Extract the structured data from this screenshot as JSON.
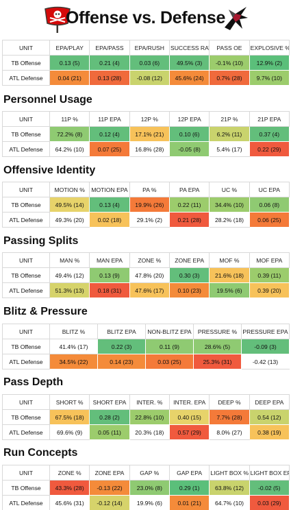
{
  "title": "Offense vs. Defense",
  "logos": {
    "left": "buccaneers-flag-logo",
    "right": "falcons-logo"
  },
  "sections": [
    {
      "name": "",
      "columns": [
        "UNIT",
        "EPA/PLAY",
        "EPA/PASS",
        "EPA/RUSH",
        "SUCCESS RATE",
        "PASS OE",
        "EXPLOSIVE %"
      ],
      "rows": [
        {
          "unit": "TB Offense",
          "cells": [
            {
              "v": "0.13 (5)",
              "c": "#63be7b"
            },
            {
              "v": "0.21 (4)",
              "c": "#63be7b"
            },
            {
              "v": "0.03 (6)",
              "c": "#63be7b"
            },
            {
              "v": "49.5% (3)",
              "c": "#63be7b"
            },
            {
              "v": "-0.1% (10)",
              "c": "#9ccc6c"
            },
            {
              "v": "12.9% (2)",
              "c": "#5bbf7a"
            }
          ]
        },
        {
          "unit": "ATL Defense",
          "cells": [
            {
              "v": "0.04 (21)",
              "c": "#f48b3a"
            },
            {
              "v": "0.13 (28)",
              "c": "#f06a3c"
            },
            {
              "v": "-0.08 (12)",
              "c": "#c9d36d"
            },
            {
              "v": "45.6% (24)",
              "c": "#f48b3a"
            },
            {
              "v": "0.7% (28)",
              "c": "#f06a3c"
            },
            {
              "v": "9.7% (10)",
              "c": "#9ccc6c"
            }
          ]
        }
      ]
    },
    {
      "name": "Personnel Usage",
      "columns": [
        "UNIT",
        "11P %",
        "11P EPA",
        "12P %",
        "12P EPA",
        "21P %",
        "21P EPA"
      ],
      "rows": [
        {
          "unit": "TB Offense",
          "cells": [
            {
              "v": "72.2% (8)",
              "c": "#8fca72"
            },
            {
              "v": "0.12 (4)",
              "c": "#63be7b"
            },
            {
              "v": "17.1% (21)",
              "c": "#f7c25a"
            },
            {
              "v": "0.10 (6)",
              "c": "#63be7b"
            },
            {
              "v": "6.2% (11)",
              "c": "#c9d36d"
            },
            {
              "v": "0.37 (4)",
              "c": "#63be7b"
            }
          ]
        },
        {
          "unit": "ATL Defense",
          "cells": [
            {
              "v": "64.2% (10)",
              "c": "#ffffff"
            },
            {
              "v": "0.07 (25)",
              "c": "#f47a39"
            },
            {
              "v": "16.8% (28)",
              "c": "#ffffff"
            },
            {
              "v": "-0.05 (8)",
              "c": "#8fca72"
            },
            {
              "v": "5.4% (17)",
              "c": "#ffffff"
            },
            {
              "v": "0.22 (29)",
              "c": "#f05a3e"
            }
          ]
        }
      ]
    },
    {
      "name": "Offensive Identity",
      "columns": [
        "UNIT",
        "MOTION %",
        "MOTION EPA",
        "PA %",
        "PA EPA",
        "UC %",
        "UC EPA"
      ],
      "rows": [
        {
          "unit": "TB Offense",
          "cells": [
            {
              "v": "49.5% (14)",
              "c": "#e7d36a"
            },
            {
              "v": "0.13 (4)",
              "c": "#63be7b"
            },
            {
              "v": "19.9% (26)",
              "c": "#f47a39"
            },
            {
              "v": "0.22 (11)",
              "c": "#9ccc6c"
            },
            {
              "v": "34.4% (10)",
              "c": "#9ccc6c"
            },
            {
              "v": "0.06 (8)",
              "c": "#8fca72"
            }
          ]
        },
        {
          "unit": "ATL Defense",
          "cells": [
            {
              "v": "49.3% (20)",
              "c": "#ffffff"
            },
            {
              "v": "0.02 (18)",
              "c": "#f7c25a"
            },
            {
              "v": "29.1% (2)",
              "c": "#ffffff"
            },
            {
              "v": "0.21 (28)",
              "c": "#f05a3e"
            },
            {
              "v": "28.2% (18)",
              "c": "#ffffff"
            },
            {
              "v": "0.06 (25)",
              "c": "#f47a39"
            }
          ]
        }
      ]
    },
    {
      "name": "Passing Splits",
      "columns": [
        "UNIT",
        "MAN %",
        "MAN EPA",
        "ZONE %",
        "ZONE EPA",
        "MOF %",
        "MOF EPA"
      ],
      "rows": [
        {
          "unit": "TB Offense",
          "cells": [
            {
              "v": "49.4% (12)",
              "c": "#ffffff"
            },
            {
              "v": "0.13 (9)",
              "c": "#8fca72"
            },
            {
              "v": "47.8% (20)",
              "c": "#ffffff"
            },
            {
              "v": "0.30 (3)",
              "c": "#63be7b"
            },
            {
              "v": "21.6% (18)",
              "c": "#f7c25a"
            },
            {
              "v": "0.39 (11)",
              "c": "#9ccc6c"
            }
          ]
        },
        {
          "unit": "ATL Defense",
          "cells": [
            {
              "v": "51.3% (13)",
              "c": "#d6d36b"
            },
            {
              "v": "0.18 (31)",
              "c": "#f05a3e"
            },
            {
              "v": "47.6% (17)",
              "c": "#f7c25a"
            },
            {
              "v": "0.10 (23)",
              "c": "#f48b3a"
            },
            {
              "v": "19.5% (6)",
              "c": "#8fca72"
            },
            {
              "v": "0.39 (20)",
              "c": "#f7c25a"
            }
          ]
        }
      ]
    },
    {
      "name": "Blitz & Pressure",
      "columns": [
        "UNIT",
        "BLITZ %",
        "BLITZ EPA",
        "NON-BLITZ EPA",
        "PRESSURE %",
        "PRESSURE EPA"
      ],
      "rows": [
        {
          "unit": "TB Offense",
          "cells": [
            {
              "v": "41.4% (17)",
              "c": "#ffffff"
            },
            {
              "v": "0.22 (3)",
              "c": "#63be7b"
            },
            {
              "v": "0.11 (9)",
              "c": "#8fca72"
            },
            {
              "v": "28.6% (5)",
              "c": "#8fca72"
            },
            {
              "v": "-0.09 (3)",
              "c": "#63be7b"
            }
          ]
        },
        {
          "unit": "ATL Defense",
          "cells": [
            {
              "v": "34.5% (22)",
              "c": "#f48b3a"
            },
            {
              "v": "0.14 (23)",
              "c": "#f48b3a"
            },
            {
              "v": "0.03 (25)",
              "c": "#f47a39"
            },
            {
              "v": "25.3% (31)",
              "c": "#f05a3e"
            },
            {
              "v": "-0.42 (13)",
              "c": "#ffffff"
            }
          ]
        }
      ]
    },
    {
      "name": "Pass Depth",
      "columns": [
        "UNIT",
        "SHORT %",
        "SHORT EPA",
        "INTER. %",
        "INTER. EPA",
        "DEEP %",
        "DEEP EPA"
      ],
      "rows": [
        {
          "unit": "TB Offense",
          "cells": [
            {
              "v": "67.5% (18)",
              "c": "#f7c25a"
            },
            {
              "v": "0.28 (2)",
              "c": "#63be7b"
            },
            {
              "v": "22.8% (10)",
              "c": "#9ccc6c"
            },
            {
              "v": "0.40 (15)",
              "c": "#e7d36a"
            },
            {
              "v": "7.7% (28)",
              "c": "#f47a39"
            },
            {
              "v": "0.54 (12)",
              "c": "#c9d36d"
            }
          ]
        },
        {
          "unit": "ATL Defense",
          "cells": [
            {
              "v": "69.6% (9)",
              "c": "#ffffff"
            },
            {
              "v": "0.05 (11)",
              "c": "#9ccc6c"
            },
            {
              "v": "20.3% (18)",
              "c": "#ffffff"
            },
            {
              "v": "0.57 (29)",
              "c": "#f05a3e"
            },
            {
              "v": "8.0% (27)",
              "c": "#ffffff"
            },
            {
              "v": "0.38 (19)",
              "c": "#f7c25a"
            }
          ]
        }
      ]
    },
    {
      "name": "Run Concepts",
      "columns": [
        "UNIT",
        "ZONE %",
        "ZONE EPA",
        "GAP %",
        "GAP EPA",
        "LIGHT BOX %",
        "LIGHT BOX EPA"
      ],
      "rows": [
        {
          "unit": "TB Offense",
          "cells": [
            {
              "v": "43.3% (28)",
              "c": "#f05a3e"
            },
            {
              "v": "-0.13 (22)",
              "c": "#f48b3a"
            },
            {
              "v": "23.0% (8)",
              "c": "#8fca72"
            },
            {
              "v": "0.29 (1)",
              "c": "#5bbf7a"
            },
            {
              "v": "63.8% (12)",
              "c": "#c9d36d"
            },
            {
              "v": "-0.02 (5)",
              "c": "#63be7b"
            }
          ]
        },
        {
          "unit": "ATL Defense",
          "cells": [
            {
              "v": "45.6% (31)",
              "c": "#ffffff"
            },
            {
              "v": "-0.12 (14)",
              "c": "#d6d36b"
            },
            {
              "v": "19.9% (6)",
              "c": "#ffffff"
            },
            {
              "v": "0.01 (21)",
              "c": "#f48b3a"
            },
            {
              "v": "64.7% (10)",
              "c": "#ffffff"
            },
            {
              "v": "0.03 (29)",
              "c": "#f05a3e"
            }
          ]
        }
      ]
    }
  ]
}
